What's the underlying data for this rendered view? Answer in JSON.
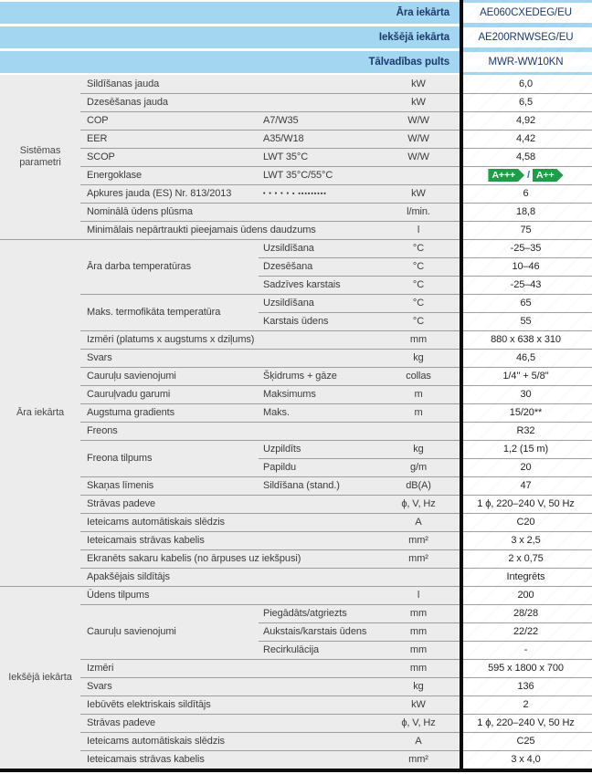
{
  "colors": {
    "header_blue": "#a3d6f0",
    "navy_text": "#1d3a6e",
    "energy_green": "#1f9e4a",
    "slash_blue": "#2f6eb5",
    "panel_gray": "#ececed",
    "line_gray": "#9e9e9e",
    "divider_black": "#0c0c0c"
  },
  "header": {
    "rows": [
      {
        "label": "Āra iekārta",
        "value": "AE060CXEDEG/EU"
      },
      {
        "label": "Iekšējā iekārta",
        "value": "AE200RNWSEG/EU"
      },
      {
        "label": "Tālvadības pults",
        "value": "MWR-WW10KN"
      }
    ]
  },
  "energy": {
    "first": "A+++",
    "separator": "/",
    "second": "A++"
  },
  "sections": [
    {
      "label": "Sistēmas parametri",
      "groups": [
        {
          "param": "Sildīšanas jauda",
          "wide": true,
          "rows": [
            {
              "unit": "kW",
              "value": "6,0"
            }
          ]
        },
        {
          "param": "Dzesēšanas jauda",
          "wide": true,
          "rows": [
            {
              "unit": "kW",
              "value": "6,5"
            }
          ]
        },
        {
          "param": "COP",
          "rows": [
            {
              "sub": "A7/W35",
              "unit": "W/W",
              "value": "4,92"
            }
          ]
        },
        {
          "param": "EER",
          "rows": [
            {
              "sub": "A35/W18",
              "unit": "W/W",
              "value": "4,42"
            }
          ]
        },
        {
          "param": "SCOP",
          "rows": [
            {
              "sub": "LWT 35°C",
              "unit": "W/W",
              "value": "4,58"
            }
          ]
        },
        {
          "param": "Energoklase",
          "rows": [
            {
              "sub": "LWT 35°C/55°C",
              "unit": "",
              "value": "",
              "value_type": "energy"
            }
          ]
        },
        {
          "param": "Apkures jauda (ES) Nr. 813/2013",
          "rows": [
            {
              "sub": "• • • • •   ▪  ▪▪▪▪▪▪▪▪▪",
              "small": true,
              "unit": "kW",
              "value": "6"
            }
          ]
        },
        {
          "param": "Nominālā ūdens plūsma",
          "wide": true,
          "rows": [
            {
              "unit": "l/min.",
              "value": "18,8"
            }
          ]
        },
        {
          "param": "Minimālais nepārtraukti pieejamais ūdens daudzums",
          "wide": true,
          "rows": [
            {
              "unit": "l",
              "value": "75"
            }
          ]
        }
      ]
    },
    {
      "label": "Āra iekārta",
      "groups": [
        {
          "param": "Āra darba temperatūras",
          "rows": [
            {
              "sub": "Uzsildīšana",
              "unit": "°C",
              "value": "-25–35"
            },
            {
              "sub": "Dzesēšana",
              "unit": "°C",
              "value": "10–46"
            },
            {
              "sub": "Sadzīves karstais",
              "unit": "°C",
              "value": "-25–43"
            }
          ]
        },
        {
          "param": "Maks. termofikāta temperatūra",
          "rows": [
            {
              "sub": "Uzsildīšana",
              "unit": "°C",
              "value": "65"
            },
            {
              "sub": "Karstais ūdens",
              "unit": "°C",
              "value": "55"
            }
          ]
        },
        {
          "param": "Izmēri (platums x augstums x dziļums)",
          "wide": true,
          "rows": [
            {
              "unit": "mm",
              "value": "880 x 638 x 310"
            }
          ]
        },
        {
          "param": "Svars",
          "wide": true,
          "rows": [
            {
              "unit": "kg",
              "value": "46,5"
            }
          ]
        },
        {
          "param": "Cauruļu savienojumi",
          "rows": [
            {
              "sub": "Šķidrums + gāze",
              "unit": "collas",
              "value": "1/4'' + 5/8''"
            }
          ]
        },
        {
          "param": "Cauruļvadu garumi",
          "rows": [
            {
              "sub": "Maksimums",
              "unit": "m",
              "value": "30"
            }
          ]
        },
        {
          "param": "Augstuma gradients",
          "rows": [
            {
              "sub": "Maks.",
              "unit": "m",
              "value": "15/20**"
            }
          ]
        },
        {
          "param": "Freons",
          "wide": true,
          "rows": [
            {
              "unit": "",
              "value": "R32"
            }
          ]
        },
        {
          "param": "Freona tilpums",
          "rows": [
            {
              "sub": "Uzpildīts",
              "unit": "kg",
              "value": "1,2 (15 m)"
            },
            {
              "sub": "Papildu",
              "unit": "g/m",
              "value": "20"
            }
          ]
        },
        {
          "param": "Skaņas līmenis",
          "rows": [
            {
              "sub": "Sildīšana (stand.)",
              "unit": "dB(A)",
              "value": "47"
            }
          ]
        },
        {
          "param": "Strāvas padeve",
          "wide": true,
          "rows": [
            {
              "unit": "ϕ, V, Hz",
              "value": "1 ϕ, 220–240 V, 50 Hz"
            }
          ]
        },
        {
          "param": "Ieteicams automātiskais slēdzis",
          "wide": true,
          "rows": [
            {
              "unit": "A",
              "value": "C20"
            }
          ]
        },
        {
          "param": "Ieteicamais strāvas kabelis",
          "wide": true,
          "rows": [
            {
              "unit": "mm²",
              "value": "3 x 2,5"
            }
          ]
        },
        {
          "param": "Ekranēts sakaru kabelis (no ārpuses uz iekšpusi)",
          "wide": true,
          "rows": [
            {
              "unit": "mm²",
              "value": "2 x 0,75"
            }
          ]
        },
        {
          "param": "Apakšējais sildītājs",
          "wide": true,
          "rows": [
            {
              "unit": "",
              "value": "Integrēts"
            }
          ]
        }
      ]
    },
    {
      "label": "Iekšējā iekārta",
      "groups": [
        {
          "param": "Ūdens tilpums",
          "wide": true,
          "rows": [
            {
              "unit": "l",
              "value": "200"
            }
          ]
        },
        {
          "param": "Cauruļu savienojumi",
          "rows": [
            {
              "sub": "Piegādāts/atgriezts",
              "unit": "mm",
              "value": "28/28"
            },
            {
              "sub": "Aukstais/karstais ūdens",
              "unit": "mm",
              "value": "22/22"
            },
            {
              "sub": "Recirkulācija",
              "unit": "mm",
              "value": "-"
            }
          ]
        },
        {
          "param": "Izmēri",
          "wide": true,
          "rows": [
            {
              "unit": "mm",
              "value": "595 x 1800 x 700"
            }
          ]
        },
        {
          "param": "Svars",
          "wide": true,
          "rows": [
            {
              "unit": "kg",
              "value": "136"
            }
          ]
        },
        {
          "param": "Iebūvēts elektriskais sildītājs",
          "wide": true,
          "rows": [
            {
              "unit": "kW",
              "value": "2"
            }
          ]
        },
        {
          "param": "Strāvas padeve",
          "wide": true,
          "rows": [
            {
              "unit": "ϕ, V, Hz",
              "value": "1 ϕ, 220–240 V, 50 Hz"
            }
          ]
        },
        {
          "param": "Ieteicams automātiskais slēdzis",
          "wide": true,
          "rows": [
            {
              "unit": "A",
              "value": "C25"
            }
          ]
        },
        {
          "param": "Ieteicamais strāvas kabelis",
          "wide": true,
          "rows": [
            {
              "unit": "mm²",
              "value": "3 x 4,0"
            }
          ]
        }
      ]
    }
  ]
}
